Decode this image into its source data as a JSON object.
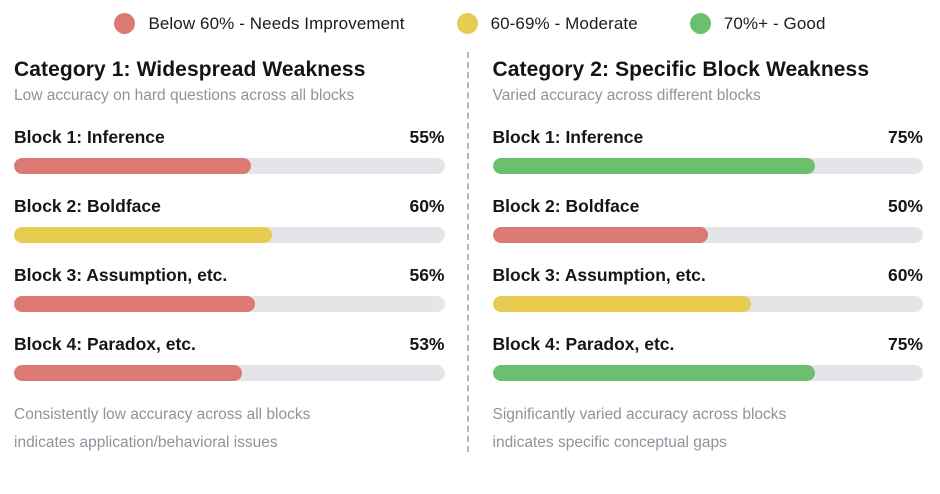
{
  "colors": {
    "poor": "#DD7973",
    "moderate": "#E8CC4F",
    "good": "#6CC06D",
    "track": "#E4E5E8"
  },
  "legend": {
    "items": [
      {
        "label": "Below 60% - Needs Improvement",
        "color": "#DD7973",
        "status": "poor"
      },
      {
        "label": "60-69% - Moderate",
        "color": "#E8CC4F",
        "status": "moderate"
      },
      {
        "label": "70%+ - Good",
        "color": "#6CC06D",
        "status": "good"
      }
    ]
  },
  "categories": [
    {
      "title": "Category 1: Widespread Weakness",
      "subtitle": "Low accuracy on hard questions across all blocks",
      "blocks": [
        {
          "label": "Block 1: Inference",
          "value": "55%",
          "percent": 55,
          "status": "poor"
        },
        {
          "label": "Block 2: Boldface",
          "value": "60%",
          "percent": 60,
          "status": "moderate"
        },
        {
          "label": "Block 3: Assumption, etc.",
          "value": "56%",
          "percent": 56,
          "status": "poor"
        },
        {
          "label": "Block 4: Paradox, etc.",
          "value": "53%",
          "percent": 53,
          "status": "poor"
        }
      ],
      "footer_lines": [
        "Consistently low accuracy across all blocks",
        "indicates application/behavioral issues"
      ]
    },
    {
      "title": "Category 2: Specific Block Weakness",
      "subtitle": "Varied accuracy across different blocks",
      "blocks": [
        {
          "label": "Block 1: Inference",
          "value": "75%",
          "percent": 75,
          "status": "good"
        },
        {
          "label": "Block 2: Boldface",
          "value": "50%",
          "percent": 50,
          "status": "poor"
        },
        {
          "label": "Block 3: Assumption, etc.",
          "value": "60%",
          "percent": 60,
          "status": "moderate"
        },
        {
          "label": "Block 4: Paradox, etc.",
          "value": "75%",
          "percent": 75,
          "status": "good"
        }
      ],
      "footer_lines": [
        "Significantly varied accuracy across blocks",
        "indicates specific conceptual gaps"
      ]
    }
  ],
  "chart_data": [
    {
      "type": "bar",
      "orientation": "horizontal",
      "title": "Category 1: Widespread Weakness",
      "subtitle": "Low accuracy on hard questions across all blocks",
      "categories": [
        "Block 1: Inference",
        "Block 2: Boldface",
        "Block 3: Assumption, etc.",
        "Block 4: Paradox, etc."
      ],
      "values": [
        55,
        60,
        56,
        53
      ],
      "unit": "%",
      "xlim": [
        0,
        100
      ],
      "annotation": "Consistently low accuracy across all blocks indicates application/behavioral issues",
      "color_rule": {
        "below_60": "#DD7973",
        "60_to_69": "#E8CC4F",
        "70_plus": "#6CC06D"
      },
      "legend_position": "top-center",
      "grid": false
    },
    {
      "type": "bar",
      "orientation": "horizontal",
      "title": "Category 2: Specific Block Weakness",
      "subtitle": "Varied accuracy across different blocks",
      "categories": [
        "Block 1: Inference",
        "Block 2: Boldface",
        "Block 3: Assumption, etc.",
        "Block 4: Paradox, etc."
      ],
      "values": [
        75,
        50,
        60,
        75
      ],
      "unit": "%",
      "xlim": [
        0,
        100
      ],
      "annotation": "Significantly varied accuracy across blocks indicates specific conceptual gaps",
      "color_rule": {
        "below_60": "#DD7973",
        "60_to_69": "#E8CC4F",
        "70_plus": "#6CC06D"
      },
      "legend_position": "top-center",
      "grid": false
    }
  ]
}
